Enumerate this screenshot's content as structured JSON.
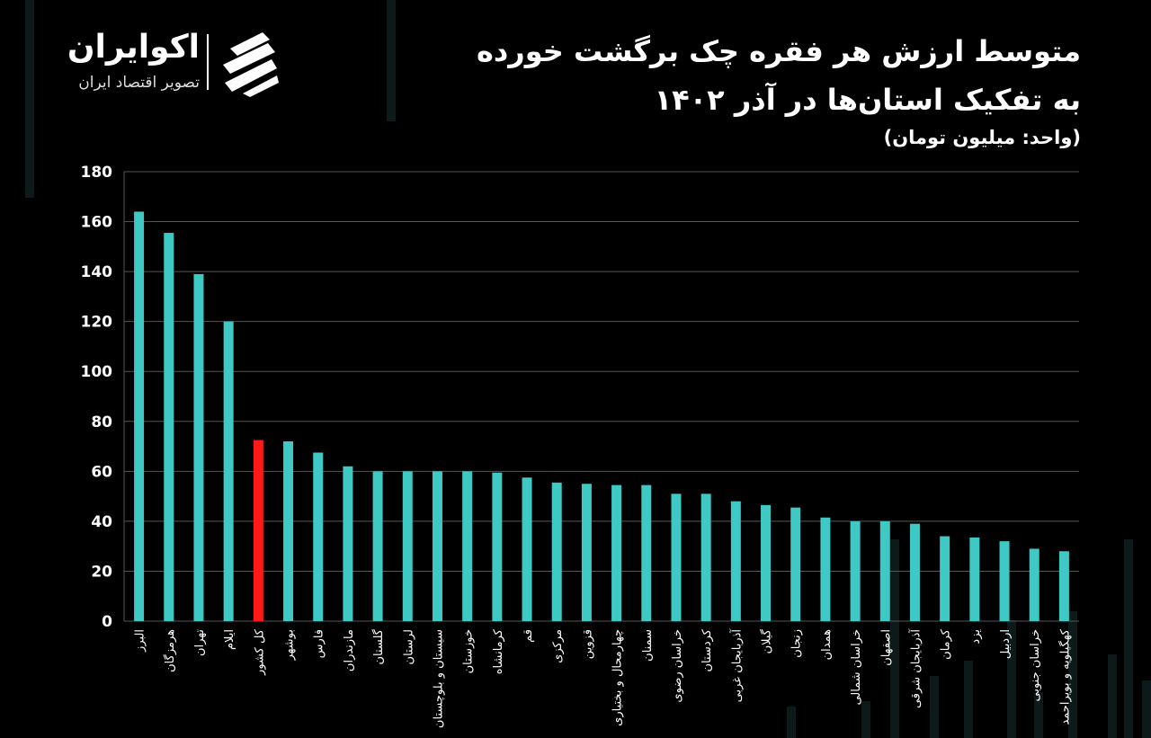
{
  "header": {
    "title_line1": "متوسط ارزش هر فقره چک برگشت خورده",
    "title_line2": "به تفکیک استان‌ها در آذر ۱۴۰۲",
    "unit": "(واحد: میلیون تومان)"
  },
  "logo": {
    "name": "اکوایران",
    "tagline": "تصویر اقتصاد ایران"
  },
  "colors": {
    "background": "#000000",
    "bar": "#3ec9c4",
    "highlight_bar": "#ff1a1a",
    "grid": "#555555",
    "text": "#ffffff"
  },
  "chart_data": {
    "type": "bar",
    "title": "متوسط ارزش هر فقره چک برگشت خورده به تفکیک استان‌ها در آذر ۱۴۰۲",
    "ylabel": "(واحد: میلیون تومان)",
    "xlabel": "",
    "ylim": [
      0,
      180
    ],
    "yticks": [
      0,
      20,
      40,
      60,
      80,
      100,
      120,
      140,
      160,
      180
    ],
    "ytick_labels": [
      "0",
      "20",
      "40",
      "60",
      "80",
      "100",
      "120",
      "140",
      "160",
      "180"
    ],
    "grid": true,
    "highlight_category": "کل کشور",
    "categories": [
      "البرز",
      "هرمزگان",
      "تهران",
      "ایلام",
      "کل کشور",
      "بوشهر",
      "فارس",
      "مازندران",
      "گلستان",
      "لرستان",
      "سیستان و بلوچستان",
      "خوزستان",
      "کرمانشاه",
      "قم",
      "مرکزی",
      "قزوین",
      "چهارمحال و بختیاری",
      "سمنان",
      "خراسان رضوی",
      "کردستان",
      "آذربایجان غربی",
      "گیلان",
      "زنجان",
      "همدان",
      "خراسان شمالی",
      "اصفهان",
      "آذربایجان شرقی",
      "کرمان",
      "یزد",
      "اردبیل",
      "خراسان جنوبی",
      "کهگیلویه و بویراحمد"
    ],
    "values": [
      164,
      155.5,
      139,
      120,
      72.5,
      72,
      67.5,
      62,
      60,
      60,
      60,
      60,
      59.5,
      57.5,
      55.5,
      55,
      54.5,
      54.5,
      51,
      51,
      48,
      46.5,
      45.5,
      41.5,
      40,
      40,
      39,
      34,
      33.5,
      32,
      29,
      28
    ]
  }
}
